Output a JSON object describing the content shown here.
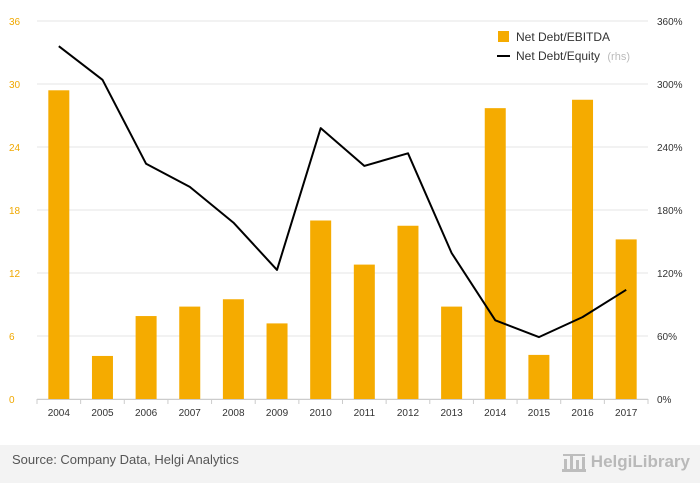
{
  "chart_data": {
    "type": "bar",
    "categories": [
      "2004",
      "2005",
      "2006",
      "2007",
      "2008",
      "2009",
      "2010",
      "2011",
      "2012",
      "2013",
      "2014",
      "2015",
      "2016",
      "2017"
    ],
    "series": [
      {
        "name": "Net Debt/EBITDA",
        "type": "bar",
        "axis": "left",
        "color": "#f5ab00",
        "values": [
          29.4,
          4.1,
          7.9,
          8.8,
          9.5,
          7.2,
          17.0,
          12.8,
          16.5,
          8.8,
          27.7,
          4.2,
          28.5,
          15.2
        ]
      },
      {
        "name": "Net Debt/Equity",
        "legend_suffix": "(rhs)",
        "type": "line",
        "axis": "right",
        "color": "#000000",
        "values": [
          336,
          304,
          224,
          202,
          168,
          123,
          258,
          222,
          234,
          139,
          75,
          59,
          78,
          104
        ]
      }
    ],
    "yaxis_left": {
      "min": 0,
      "max": 36,
      "ticks": [
        "0",
        "6",
        "12",
        "18",
        "24",
        "30",
        "36"
      ]
    },
    "yaxis_right": {
      "min": 0,
      "max": 360,
      "ticks": [
        "0%",
        "60%",
        "120%",
        "180%",
        "240%",
        "300%",
        "360%"
      ]
    },
    "grid": true,
    "legend_position": "top-right"
  },
  "footer": {
    "source": "Source: Company Data, Helgi Analytics",
    "logo_text": "HelgiLibrary"
  }
}
